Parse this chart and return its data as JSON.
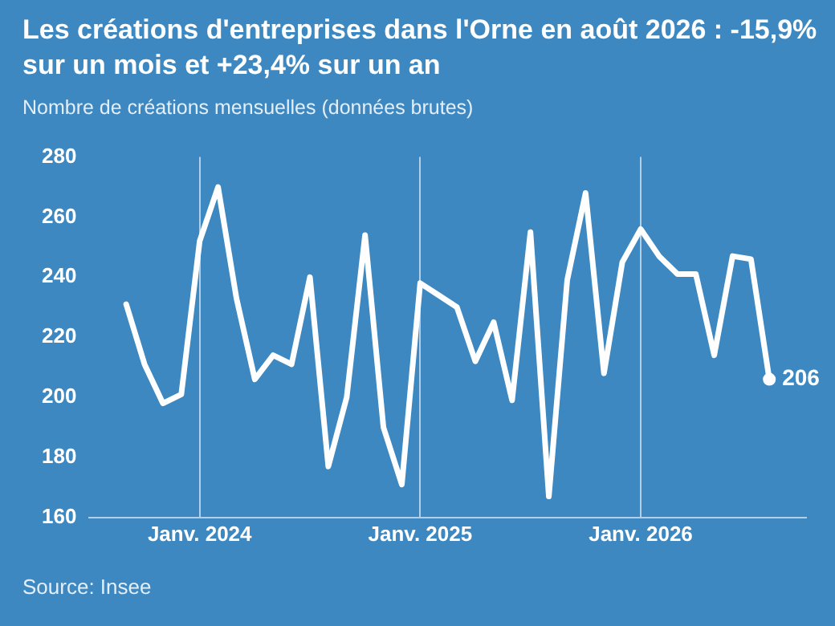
{
  "chart_data": {
    "type": "line",
    "title": "Les créations d'entreprises dans l'Orne en août 2026 : -15,9% sur un mois et +23,4% sur un an",
    "subtitle": "Nombre de créations mensuelles (données brutes)",
    "annotations": [
      "Source: Insee"
    ],
    "x": [
      "2023-09",
      "2023-10",
      "2023-11",
      "2023-12",
      "2024-01",
      "2024-02",
      "2024-03",
      "2024-04",
      "2024-05",
      "2024-06",
      "2024-07",
      "2024-08",
      "2024-09",
      "2024-10",
      "2024-11",
      "2024-12",
      "2025-01",
      "2025-02",
      "2025-03",
      "2025-04",
      "2025-05",
      "2025-06",
      "2025-07",
      "2025-08",
      "2025-09",
      "2025-10",
      "2025-11",
      "2025-12",
      "2026-01",
      "2026-02",
      "2026-03",
      "2026-04",
      "2026-05",
      "2026-06",
      "2026-07",
      "2026-08"
    ],
    "series": [
      {
        "color": "#ffffff",
        "values": [
          231,
          211,
          198,
          201,
          252,
          270,
          233,
          206,
          214,
          211,
          240,
          177,
          200,
          254,
          190,
          171,
          238,
          234,
          230,
          212,
          225,
          199,
          255,
          167,
          239,
          268,
          208,
          245,
          256,
          247,
          241,
          241,
          214,
          247,
          246,
          206
        ],
        "value_labels": [
          null,
          null,
          null,
          null,
          null,
          null,
          null,
          null,
          null,
          null,
          null,
          null,
          null,
          null,
          null,
          null,
          null,
          null,
          null,
          null,
          null,
          null,
          null,
          null,
          null,
          null,
          null,
          null,
          null,
          null,
          null,
          null,
          null,
          null,
          null,
          "206"
        ]
      }
    ],
    "xlim": [
      "2023-07",
      "2026-10"
    ],
    "xticks": [
      {
        "value": "2024-01",
        "label": "Janv. 2024"
      },
      {
        "value": "2025-01",
        "label": "Janv. 2025"
      },
      {
        "value": "2026-01",
        "label": "Janv. 2026"
      }
    ],
    "ylim": [
      160,
      280
    ],
    "yticks": [
      160,
      180,
      200,
      220,
      240,
      260,
      280
    ],
    "grid": "x",
    "legend": false,
    "marker": "none",
    "line_style": "solid"
  }
}
